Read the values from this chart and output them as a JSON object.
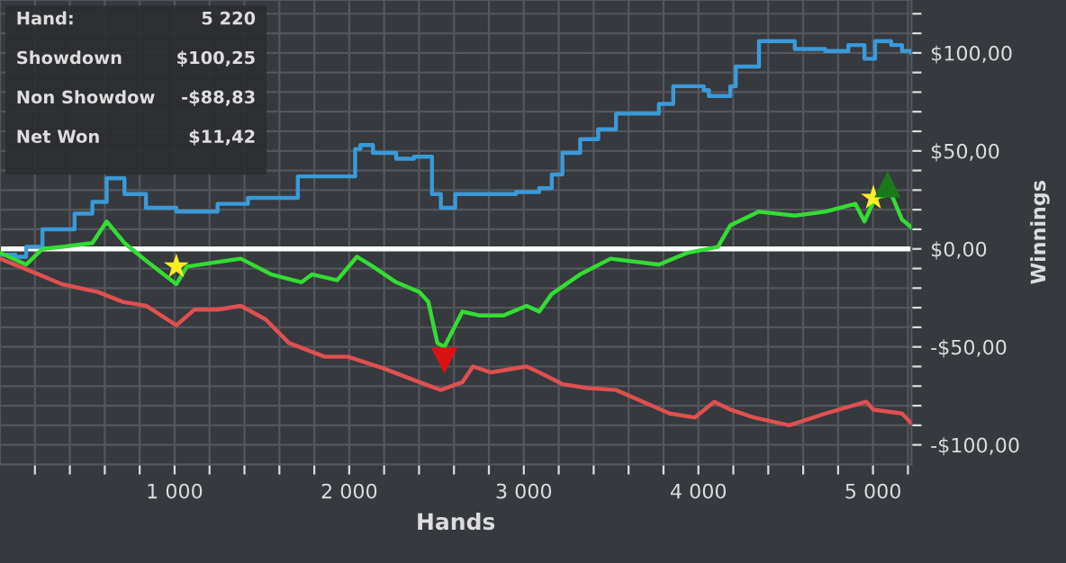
{
  "chart_data": {
    "type": "line",
    "xlabel": "Hands",
    "ylabel": "Winnings",
    "annotations": [
      "Hand:",
      "5 220",
      "Showdown",
      "$100,25",
      "Non Showdow",
      "-$88,83",
      "Net Won",
      "$11,42"
    ],
    "xlim": [
      0,
      5220
    ],
    "ylim": [
      -110,
      127
    ],
    "xticks": [
      {
        "value": 200,
        "label": null
      },
      {
        "value": 400,
        "label": null
      },
      {
        "value": 600,
        "label": null
      },
      {
        "value": 800,
        "label": null
      },
      {
        "value": 1000,
        "label": "1 000"
      },
      {
        "value": 1200,
        "label": null
      },
      {
        "value": 1400,
        "label": null
      },
      {
        "value": 1600,
        "label": null
      },
      {
        "value": 1800,
        "label": null
      },
      {
        "value": 2000,
        "label": "2 000"
      },
      {
        "value": 2200,
        "label": null
      },
      {
        "value": 2400,
        "label": null
      },
      {
        "value": 2600,
        "label": null
      },
      {
        "value": 2800,
        "label": null
      },
      {
        "value": 3000,
        "label": "3 000"
      },
      {
        "value": 3200,
        "label": null
      },
      {
        "value": 3400,
        "label": null
      },
      {
        "value": 3600,
        "label": null
      },
      {
        "value": 3800,
        "label": null
      },
      {
        "value": 4000,
        "label": "4 000"
      },
      {
        "value": 4200,
        "label": null
      },
      {
        "value": 4400,
        "label": null
      },
      {
        "value": 4600,
        "label": null
      },
      {
        "value": 4800,
        "label": null
      },
      {
        "value": 5000,
        "label": "5 000"
      },
      {
        "value": 5200,
        "label": null
      }
    ],
    "yticks": [
      {
        "value": -100,
        "label": "-$100,00"
      },
      {
        "value": -90,
        "label": null
      },
      {
        "value": -80,
        "label": null
      },
      {
        "value": -70,
        "label": null
      },
      {
        "value": -60,
        "label": null
      },
      {
        "value": -50,
        "label": "-$50,00"
      },
      {
        "value": -40,
        "label": null
      },
      {
        "value": -30,
        "label": null
      },
      {
        "value": -20,
        "label": null
      },
      {
        "value": -10,
        "label": null
      },
      {
        "value": 0,
        "label": "$0,00"
      },
      {
        "value": 10,
        "label": null
      },
      {
        "value": 20,
        "label": null
      },
      {
        "value": 30,
        "label": null
      },
      {
        "value": 40,
        "label": null
      },
      {
        "value": 50,
        "label": "$50,00"
      },
      {
        "value": 60,
        "label": null
      },
      {
        "value": 70,
        "label": null
      },
      {
        "value": 80,
        "label": null
      },
      {
        "value": 90,
        "label": null
      },
      {
        "value": 100,
        "label": "$100,00"
      },
      {
        "value": 110,
        "label": null
      },
      {
        "value": 120,
        "label": null
      }
    ],
    "grid": true,
    "ref_lines": [
      {
        "axis": "y",
        "value": 0,
        "color": "#ffffff",
        "line_style": "solid"
      }
    ],
    "series": [
      {
        "type": "step",
        "color": "#3a9ad9",
        "x": [
          0,
          89,
          150,
          243,
          427,
          529,
          611,
          713,
          836,
          1010,
          1246,
          1420,
          1706,
          2034,
          2064,
          2136,
          2269,
          2371,
          2474,
          2525,
          2607,
          2955,
          3088,
          3160,
          3221,
          3323,
          3426,
          3528,
          3774,
          3856,
          4030,
          4060,
          4183,
          4214,
          4347,
          4552,
          4726,
          4859,
          4951,
          5012,
          5104,
          5166,
          5220
        ],
        "values": [
          -3,
          -4,
          1,
          10,
          18,
          24,
          36,
          28,
          21,
          19,
          23,
          26,
          37,
          51,
          53,
          49,
          46,
          47,
          28,
          21,
          28,
          29,
          31,
          38,
          49,
          56,
          61,
          69,
          74,
          83,
          81,
          78,
          83,
          93,
          106,
          102,
          101,
          104,
          97,
          106,
          104,
          101,
          100
        ]
      },
      {
        "color": "#33dd33",
        "x": [
          0,
          150,
          243,
          355,
          529,
          611,
          713,
          836,
          1010,
          1071,
          1379,
          1553,
          1727,
          1788,
          1931,
          2044,
          2136,
          2269,
          2402,
          2453,
          2505,
          2545,
          2648,
          2750,
          2883,
          3016,
          3088,
          3160,
          3323,
          3497,
          3774,
          3937,
          4111,
          4183,
          4347,
          4552,
          4726,
          4899,
          4951,
          5012,
          5104,
          5166,
          5220
        ],
        "values": [
          -2,
          -8,
          0,
          1,
          3,
          14,
          3,
          -6,
          -18,
          -9,
          -5,
          -13,
          -17,
          -13,
          -16,
          -4,
          -9,
          -17,
          -22,
          -27,
          -48,
          -50,
          -32,
          -34,
          -34,
          -29,
          -32,
          -23,
          -13,
          -5,
          -8,
          -2,
          1,
          12,
          19,
          17,
          19,
          23,
          14,
          26,
          28,
          15,
          11
        ]
      },
      {
        "color": "#e05050",
        "x": [
          0,
          222,
          355,
          560,
          703,
          836,
          1010,
          1113,
          1246,
          1379,
          1522,
          1655,
          1860,
          1993,
          2197,
          2402,
          2525,
          2648,
          2709,
          2812,
          3016,
          3088,
          3221,
          3364,
          3528,
          3733,
          3835,
          3979,
          4091,
          4183,
          4316,
          4521,
          4726,
          4961,
          5002,
          5166,
          5220
        ],
        "values": [
          -5,
          -13,
          -18,
          -22,
          -27,
          -29,
          -39,
          -31,
          -31,
          -29,
          -36,
          -48,
          -55,
          -55,
          -61,
          -68,
          -72,
          -68,
          -60,
          -63,
          -60,
          -63,
          -69,
          -71,
          -72,
          -80,
          -84,
          -86,
          -78,
          -82,
          -86,
          -90,
          -84,
          -78,
          -82,
          -84,
          -89
        ]
      },
      {
        "type": "scatter",
        "marker": "star",
        "color": "#ffee22",
        "x": [
          1010,
          5002
        ],
        "values": [
          -9,
          26
        ]
      },
      {
        "type": "scatter",
        "marker": "triangle",
        "color": "#1a7a1a",
        "x": [
          5083
        ],
        "values": [
          33
        ]
      },
      {
        "type": "scatter",
        "marker": "triangle_down",
        "color": "#dd1111",
        "x": [
          2545
        ],
        "values": [
          -57
        ]
      }
    ]
  }
}
